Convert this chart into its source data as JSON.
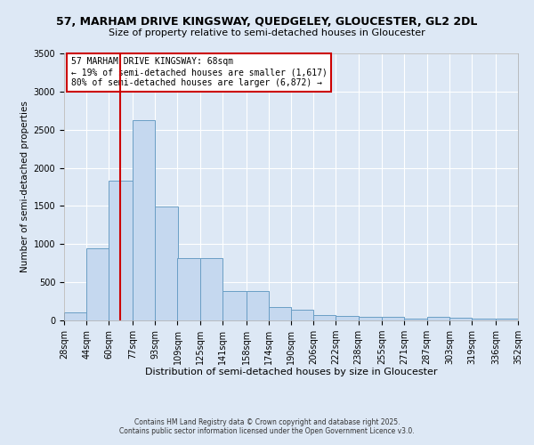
{
  "title_line1": "57, MARHAM DRIVE KINGSWAY, QUEDGELEY, GLOUCESTER, GL2 2DL",
  "title_line2": "Size of property relative to semi-detached houses in Gloucester",
  "xlabel": "Distribution of semi-detached houses by size in Gloucester",
  "ylabel": "Number of semi-detached properties",
  "footnote1": "Contains HM Land Registry data © Crown copyright and database right 2025.",
  "footnote2": "Contains public sector information licensed under the Open Government Licence v3.0.",
  "annotation_title": "57 MARHAM DRIVE KINGSWAY: 68sqm",
  "annotation_line2": "← 19% of semi-detached houses are smaller (1,617)",
  "annotation_line3": "80% of semi-detached houses are larger (6,872) →",
  "property_size": 68,
  "bin_labels": [
    "28sqm",
    "44sqm",
    "60sqm",
    "77sqm",
    "93sqm",
    "109sqm",
    "125sqm",
    "141sqm",
    "158sqm",
    "174sqm",
    "190sqm",
    "206sqm",
    "222sqm",
    "238sqm",
    "255sqm",
    "271sqm",
    "287sqm",
    "303sqm",
    "319sqm",
    "336sqm",
    "352sqm"
  ],
  "bin_edges": [
    28,
    44,
    60,
    77,
    93,
    109,
    125,
    141,
    158,
    174,
    190,
    206,
    222,
    238,
    255,
    271,
    287,
    303,
    319,
    336,
    352
  ],
  "bar_heights": [
    100,
    950,
    1830,
    2620,
    1490,
    820,
    820,
    390,
    390,
    175,
    140,
    75,
    55,
    50,
    45,
    25,
    45,
    40,
    25,
    20,
    5
  ],
  "bar_color": "#c5d8ef",
  "bar_edgecolor": "#6a9ec5",
  "vline_color": "#cc0000",
  "vline_x": 68,
  "annotation_box_color": "#cc0000",
  "background_color": "#dde8f5",
  "ylim": [
    0,
    3500
  ],
  "yticks": [
    0,
    500,
    1000,
    1500,
    2000,
    2500,
    3000,
    3500
  ]
}
